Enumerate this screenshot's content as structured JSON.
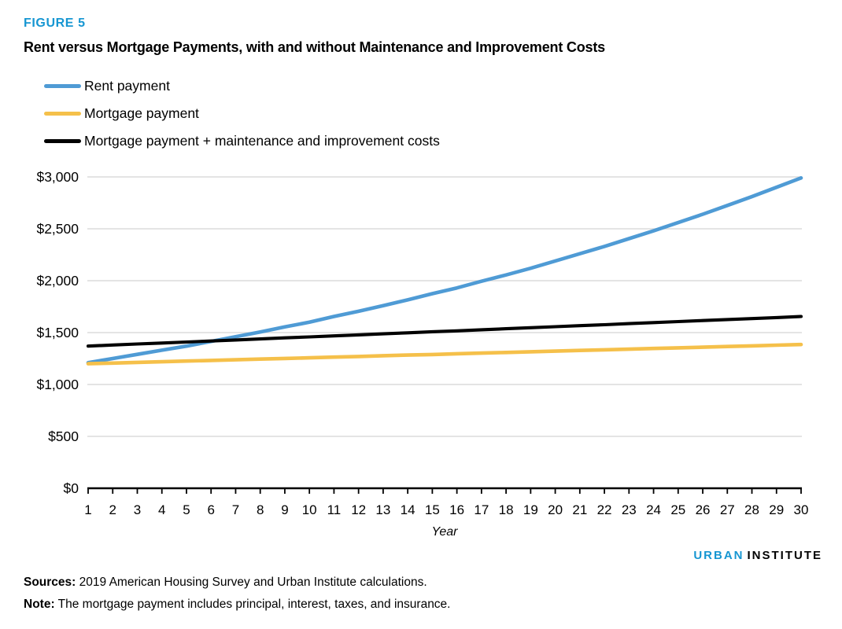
{
  "figure_label": "FIGURE 5",
  "title": "Rent versus Mortgage Payments, with and without Maintenance and Improvement Costs",
  "legend": [
    {
      "label": "Rent payment",
      "color": "#4f9bd5"
    },
    {
      "label": "Mortgage payment",
      "color": "#f5c04a"
    },
    {
      "label": "Mortgage payment + maintenance and improvement costs",
      "color": "#000000"
    }
  ],
  "chart_data": {
    "type": "line",
    "title": "Rent versus Mortgage Payments, with and without Maintenance and Improvement Costs",
    "xlabel": "Year",
    "ylabel": "",
    "x": [
      1,
      2,
      3,
      4,
      5,
      6,
      7,
      8,
      9,
      10,
      11,
      12,
      13,
      14,
      15,
      16,
      17,
      18,
      19,
      20,
      21,
      22,
      23,
      24,
      25,
      26,
      27,
      28,
      29,
      30
    ],
    "ylim": [
      0,
      3000
    ],
    "ytick_step": 500,
    "ytick_labels": [
      "$0",
      "$500",
      "$1,000",
      "$1,500",
      "$2,000",
      "$2,500",
      "$3,000"
    ],
    "grid": true,
    "legend_position": "top-left",
    "series": [
      {
        "name": "Rent payment",
        "color": "#4f9bd5",
        "values": [
          1210,
          1250,
          1290,
          1330,
          1370,
          1415,
          1460,
          1505,
          1555,
          1600,
          1655,
          1705,
          1760,
          1815,
          1875,
          1930,
          1995,
          2055,
          2120,
          2190,
          2260,
          2330,
          2405,
          2480,
          2560,
          2640,
          2725,
          2810,
          2900,
          2990
        ]
      },
      {
        "name": "Mortgage payment",
        "color": "#f5c04a",
        "values": [
          1200,
          1206,
          1213,
          1219,
          1226,
          1232,
          1238,
          1245,
          1251,
          1257,
          1264,
          1270,
          1277,
          1283,
          1289,
          1296,
          1302,
          1308,
          1315,
          1321,
          1328,
          1334,
          1340,
          1347,
          1353,
          1359,
          1366,
          1372,
          1379,
          1385
        ]
      },
      {
        "name": "Mortgage payment + maintenance and improvement costs",
        "color": "#000000",
        "values": [
          1370,
          1380,
          1390,
          1399,
          1409,
          1419,
          1429,
          1439,
          1449,
          1458,
          1468,
          1478,
          1488,
          1498,
          1508,
          1517,
          1527,
          1537,
          1547,
          1557,
          1567,
          1576,
          1586,
          1596,
          1606,
          1616,
          1626,
          1635,
          1645,
          1655
        ]
      }
    ]
  },
  "branding": {
    "word1": "URBAN",
    "word2": "INSTITUTE"
  },
  "footer": {
    "sources_label": "Sources:",
    "sources_text": " 2019 American Housing Survey and Urban Institute calculations.",
    "note_label": "Note:",
    "note_text": " The mortgage payment includes principal, interest, taxes, and insurance."
  },
  "colors": {
    "accent_blue": "#1696d2",
    "gridline": "#dbdbdb",
    "axis": "#000000"
  }
}
